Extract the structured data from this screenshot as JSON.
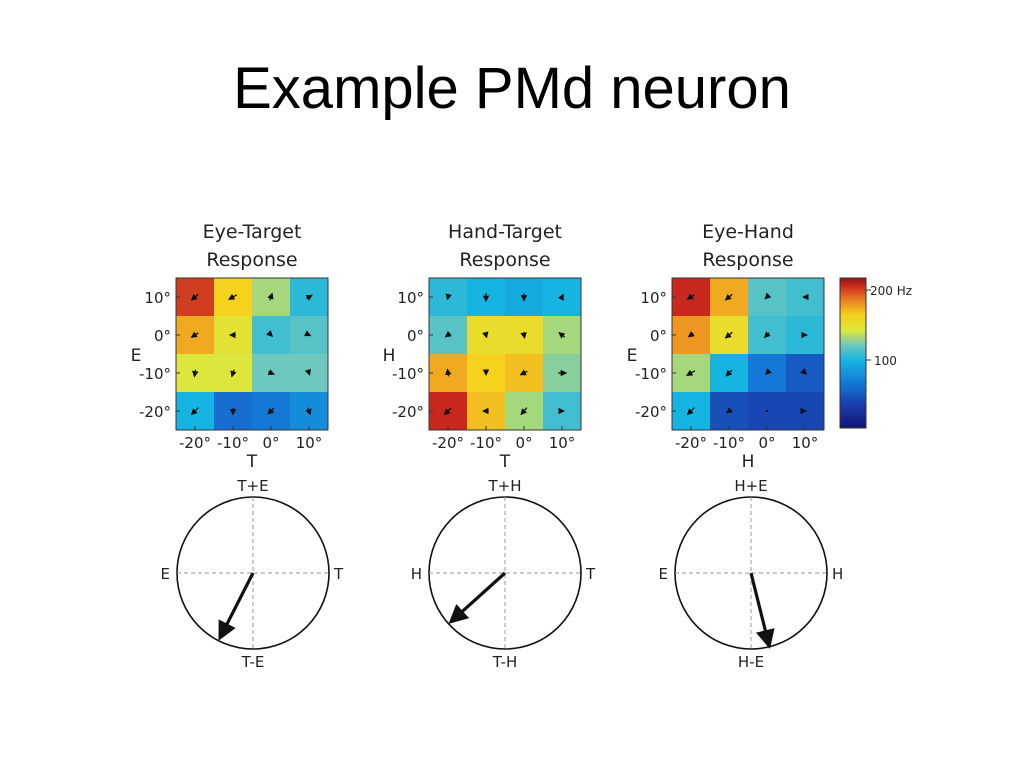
{
  "slide": {
    "title": "Example PMd neuron"
  },
  "colors": {
    "low": "#1a2f8f",
    "mid": "#16b4e0",
    "high": "#f2e51e",
    "top": "#8c1414"
  },
  "chart_data": [
    {
      "type": "heatmap",
      "title_line1": "Eye-Target",
      "title_line2": "Response",
      "ylabel": "E",
      "xlabel": "T",
      "rows": [
        "10°",
        "0°",
        "-10°",
        "-20°"
      ],
      "cols": [
        "-20°",
        "-10°",
        "0°",
        "10°"
      ],
      "values": [
        [
          185,
          150,
          120,
          95
        ],
        [
          160,
          135,
          100,
          105
        ],
        [
          130,
          130,
          110,
          110
        ],
        [
          90,
          55,
          60,
          70
        ]
      ],
      "arrows": [
        [
          [
            -0.6,
            -0.5
          ],
          [
            -0.7,
            -0.4
          ],
          [
            0.2,
            0.6
          ],
          [
            0.5,
            0.3
          ]
        ],
        [
          [
            -0.6,
            -0.4
          ],
          [
            -0.5,
            0
          ],
          [
            0.2,
            -0.2
          ],
          [
            0.2,
            -0.1
          ]
        ],
        [
          [
            -0.1,
            -0.6
          ],
          [
            -0.2,
            -0.6
          ],
          [
            0.5,
            -0.2
          ],
          [
            0.1,
            -0.3
          ]
        ],
        [
          [
            -0.6,
            -0.6
          ],
          [
            0,
            -0.6
          ],
          [
            -0.5,
            -0.5
          ],
          [
            0.2,
            -0.6
          ]
        ]
      ]
    },
    {
      "type": "heatmap",
      "title_line1": "Hand-Target",
      "title_line2": "Response",
      "ylabel": "H",
      "xlabel": "T",
      "rows": [
        "10°",
        "0°",
        "-10°",
        "-20°"
      ],
      "cols": [
        "-20°",
        "-10°",
        "0°",
        "10°"
      ],
      "values": [
        [
          95,
          90,
          85,
          90
        ],
        [
          105,
          140,
          140,
          120
        ],
        [
          160,
          150,
          155,
          115
        ],
        [
          190,
          155,
          120,
          100
        ]
      ],
      "arrows": [
        [
          [
            -0.1,
            -0.4
          ],
          [
            0,
            -0.7
          ],
          [
            0,
            -0.6
          ],
          [
            0.2,
            0.4
          ]
        ],
        [
          [
            -0.4,
            -0.3
          ],
          [
            0.1,
            -0.4
          ],
          [
            0.1,
            -0.5
          ],
          [
            -0.5,
            0.4
          ]
        ],
        [
          [
            -0.1,
            0.6
          ],
          [
            0,
            -0.3
          ],
          [
            -0.6,
            -0.3
          ],
          [
            0.7,
            0
          ]
        ],
        [
          [
            -0.6,
            -0.6
          ],
          [
            -0.5,
            0
          ],
          [
            -0.5,
            -0.6
          ],
          [
            0.3,
            0
          ]
        ]
      ]
    },
    {
      "type": "heatmap",
      "title_line1": "Eye-Hand",
      "title_line2": "Response",
      "ylabel": "E",
      "xlabel": "H",
      "rows": [
        "10°",
        "0°",
        "-10°",
        "-20°"
      ],
      "cols": [
        "-20°",
        "-10°",
        "0°",
        "10°"
      ],
      "values": [
        [
          190,
          160,
          105,
          100
        ],
        [
          165,
          140,
          100,
          95
        ],
        [
          120,
          90,
          60,
          45
        ],
        [
          90,
          40,
          35,
          35
        ]
      ],
      "arrows": [
        [
          [
            -0.6,
            -0.4
          ],
          [
            -0.6,
            -0.5
          ],
          [
            -0.3,
            -0.3
          ],
          [
            -0.3,
            0
          ]
        ],
        [
          [
            -0.4,
            -0.3
          ],
          [
            -0.6,
            -0.5
          ],
          [
            -0.4,
            -0.4
          ],
          [
            0.3,
            0
          ]
        ],
        [
          [
            -0.7,
            -0.4
          ],
          [
            -0.5,
            -0.5
          ],
          [
            -0.2,
            -0.2
          ],
          [
            0.2,
            -0.2
          ]
        ],
        [
          [
            -0.6,
            -0.6
          ],
          [
            -0.4,
            -0.3
          ],
          [
            0,
            0
          ],
          [
            0.1,
            0
          ]
        ]
      ]
    }
  ],
  "colorbar": {
    "top_label": "200 Hz",
    "mid_label": "100"
  },
  "polar_plots": [
    {
      "top": "T+E",
      "bottom": "T-E",
      "left": "E",
      "right": "T",
      "arrow_angle_deg": 243,
      "arrow_length": 0.95
    },
    {
      "top": "T+H",
      "bottom": "T-H",
      "left": "H",
      "right": "T",
      "arrow_angle_deg": 222,
      "arrow_length": 0.95
    },
    {
      "top": "H+E",
      "bottom": "H-E",
      "left": "E",
      "right": "H",
      "arrow_angle_deg": 284,
      "arrow_length": 0.98
    }
  ]
}
